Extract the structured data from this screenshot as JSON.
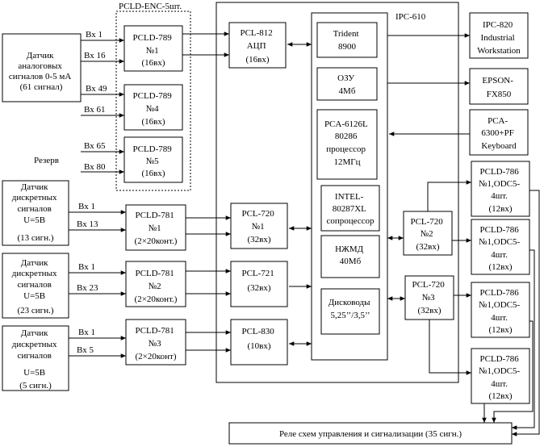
{
  "ipc": {
    "label": "IPC-610"
  },
  "enc": {
    "label": "PCLD-ENC-5шт."
  },
  "reserve_label": "Резерв",
  "sensors": {
    "analog": [
      "Датчик",
      "аналоговых",
      "сигналов 0-5 мА",
      "(61 сигнал)"
    ],
    "disc1": [
      "Датчик",
      "дискретных",
      "сигналов",
      "U=5В",
      "(13 сигн.)"
    ],
    "disc2": [
      "Датчик",
      "дискретных",
      "сигналов",
      "U=5В",
      "(23 сигн.)"
    ],
    "disc3": [
      "Датчик",
      "дискретных",
      "сигналов",
      "U=5В",
      "(5 сигн.)"
    ]
  },
  "inputs": {
    "a1": "Вх 1",
    "a16": "Вх 16",
    "a49": "Вх 49",
    "a61": "Вх 61",
    "a65": "Вх 65",
    "a80": "Вх 80",
    "d1_1": "Вх 1",
    "d1_13": "Вх 13",
    "d2_1": "Вх 1",
    "d2_23": "Вх 23",
    "d3_1": "Вх 1",
    "d3_5": "Вх 5"
  },
  "boards": {
    "pcld789_1": [
      "PCLD-789",
      "№1",
      "(16вх)"
    ],
    "pcld789_4": [
      "PCLD-789",
      "№4",
      "(16вх)"
    ],
    "pcld789_5": [
      "PCLD-789",
      "№5",
      "(16вх)"
    ],
    "pcld781_1": [
      "PCLD-781",
      "№1",
      "(2×20конт.)"
    ],
    "pcld781_2": [
      "PCLD-781",
      "№2",
      "(2×20конт.)"
    ],
    "pcld781_3": [
      "PCLD-781",
      "№3",
      "(2×20конт)"
    ],
    "pcl812": [
      "PCL-812",
      "АЦП",
      "(16вх)"
    ],
    "pcl720_1": [
      "PCL-720",
      "№1",
      "(32вх)"
    ],
    "pcl721": [
      "PCL-721",
      "(32вх)"
    ],
    "pcl830": [
      "PCL-830",
      "(10вх)"
    ],
    "trident": [
      "Trident",
      "8900"
    ],
    "ozu": [
      "ОЗУ",
      "4Мб"
    ],
    "cpu": [
      "PCA-6126L",
      "80286",
      "процессор",
      "12МГц"
    ],
    "copro": [
      "INTEL-",
      "80287XL",
      "сопроцессор"
    ],
    "hdd": [
      "НЖМД",
      "40Мб"
    ],
    "fdd": [
      "Дисководы",
      "5,25’’/3,5’’"
    ],
    "pcl720_2": [
      "PCL-720",
      "№2",
      "(32вх)"
    ],
    "pcl720_3": [
      "PCL-720",
      "№3",
      "(32вх)"
    ],
    "ipc820": [
      "IPC-820",
      "Industrial",
      "Workstation"
    ],
    "epson": [
      "EPSON-",
      "FX850"
    ],
    "keyboard": [
      "PCA-",
      "6300+PF",
      "Keyboard"
    ],
    "pcld786_1": [
      "PCLD-786",
      "№1,ODC5-",
      "4шт.",
      "(12вх)"
    ],
    "pcld786_2": [
      "PCLD-786",
      "№1,ODC5-",
      "4шт.",
      "(12вх)"
    ],
    "pcld786_3": [
      "PCLD-786",
      "№1,ODC5-",
      "4шт.",
      "(12вх)"
    ],
    "pcld786_4": [
      "PCLD-786",
      "№1,ODC5-",
      "4шт.",
      "(12вх)"
    ]
  },
  "relay": "Реле схем управления и сигнализации (35 сигн.)"
}
